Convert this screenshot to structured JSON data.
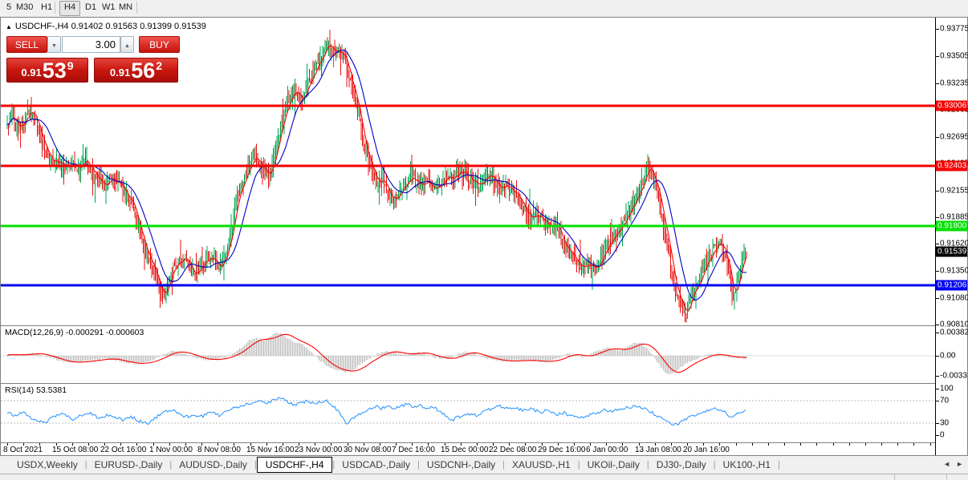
{
  "toolbar": {
    "timeframes": [
      {
        "label": "5",
        "active": false
      },
      {
        "label": "M30",
        "active": false
      },
      {
        "label": "H1",
        "active": false
      },
      {
        "label": "H4",
        "active": true
      },
      {
        "label": "D1",
        "active": false
      },
      {
        "label": "W1",
        "active": false
      },
      {
        "label": "MN",
        "active": false
      }
    ]
  },
  "chart": {
    "title_full": "USDCHF-,H4 0.91402 0.91563 0.91399 0.91539",
    "symbol": "USDCHF-",
    "timeframe": "H4"
  },
  "trade_panel": {
    "sell_label": "SELL",
    "buy_label": "BUY",
    "volume": "3.00",
    "bid_small": "0.91",
    "bid_big": "53",
    "bid_sup": "9",
    "ask_small": "0.91",
    "ask_big": "56",
    "ask_sup": "2"
  },
  "price_axis": {
    "ticks": [
      {
        "label": "0.93775",
        "price": 0.93775
      },
      {
        "label": "0.93505",
        "price": 0.93505
      },
      {
        "label": "0.93235",
        "price": 0.93235
      },
      {
        "label": "0.92965",
        "price": 0.92965
      },
      {
        "label": "0.92695",
        "price": 0.92695
      },
      {
        "label": "0.92425",
        "price": 0.92425
      },
      {
        "label": "0.92155",
        "price": 0.92155
      },
      {
        "label": "0.91885",
        "price": 0.91885
      },
      {
        "label": "0.91620",
        "price": 0.9162
      },
      {
        "label": "0.91350",
        "price": 0.9135
      },
      {
        "label": "0.91080",
        "price": 0.9108
      },
      {
        "label": "0.90810",
        "price": 0.9081
      }
    ]
  },
  "levels": [
    {
      "price": 0.93006,
      "label": "0.93006",
      "color": "#F40000"
    },
    {
      "price": 0.92403,
      "label": "0.92403",
      "color": "#F40000"
    },
    {
      "price": 0.918,
      "label": "0.91800",
      "color": "#00E100"
    },
    {
      "price": 0.91206,
      "label": "0.91206",
      "color": "#0000F0"
    }
  ],
  "current_price": {
    "label": "0.91539",
    "price": 0.91539,
    "bg": "#000000"
  },
  "macd": {
    "label": "MACD(12,26,9) -0.000291 -0.000603",
    "axis": [
      {
        "label": "0.00382",
        "value": 0.00382
      },
      {
        "label": "0.00",
        "value": 0
      },
      {
        "label": "-0.0033",
        "value": -0.0033
      }
    ]
  },
  "rsi": {
    "label": "RSI(14) 53.5381",
    "axis": [
      {
        "label": "100",
        "value": 100
      },
      {
        "label": "70",
        "value": 70
      },
      {
        "label": "30",
        "value": 30
      },
      {
        "label": "0",
        "value": 0
      }
    ]
  },
  "tabs": {
    "items": [
      {
        "label": "USDX,Weekly",
        "active": false
      },
      {
        "label": "EURUSD-,Daily",
        "active": false
      },
      {
        "label": "AUDUSD-,Daily",
        "active": false
      },
      {
        "label": "USDCHF-,H4",
        "active": true
      },
      {
        "label": "USDCAD-,Daily",
        "active": false
      },
      {
        "label": "USDCNH-,Daily",
        "active": false
      },
      {
        "label": "XAUUSD-,H1",
        "active": false
      },
      {
        "label": "UKOil-,Daily",
        "active": false
      },
      {
        "label": "DJ30-,Daily",
        "active": false
      },
      {
        "label": "UK100-,H1",
        "active": false
      }
    ],
    "scroll_left": "◄",
    "scroll_right": "►"
  },
  "chart_data": {
    "type": "candlestick",
    "symbol": "USDCHF-",
    "timeframe": "H4",
    "ohlc_readout": {
      "open": "0.91402",
      "high": "0.91563",
      "low": "0.91399",
      "close": "0.91539"
    },
    "y_range": [
      0.9081,
      0.9382
    ],
    "colors": {
      "up": "#00A651",
      "down": "#E81212",
      "ma_fast": "#FF0000",
      "ma_slow": "#0000C8",
      "macd_hist": "#C4C4C4",
      "macd_signal": "#FF0000",
      "rsi_line": "#1E90FF",
      "rsi_levels": "#B8B8B8"
    },
    "x_labels": [
      "8 Oct 2021",
      "15 Oct 08:00",
      "22 Oct 16:00",
      "1 Nov 00:00",
      "8 Nov 08:00",
      "15 Nov 16:00",
      "23 Nov 00:00",
      "30 Nov 08:00",
      "7 Dec 16:00",
      "15 Dec 00:00",
      "22 Dec 08:00",
      "29 Dec 16:00",
      "6 Jan 00:00",
      "13 Jan 08:00",
      "20 Jan 16:00"
    ],
    "price_path_anchors": [
      [
        8,
        0.928
      ],
      [
        14,
        0.929
      ],
      [
        22,
        0.9278
      ],
      [
        30,
        0.9288
      ],
      [
        36,
        0.9296
      ],
      [
        44,
        0.9286
      ],
      [
        52,
        0.9262
      ],
      [
        60,
        0.9248
      ],
      [
        70,
        0.9244
      ],
      [
        80,
        0.924
      ],
      [
        90,
        0.9242
      ],
      [
        98,
        0.9238
      ],
      [
        106,
        0.9246
      ],
      [
        114,
        0.9234
      ],
      [
        122,
        0.9226
      ],
      [
        130,
        0.922
      ],
      [
        138,
        0.9228
      ],
      [
        146,
        0.9222
      ],
      [
        154,
        0.9212
      ],
      [
        162,
        0.9206
      ],
      [
        170,
        0.9182
      ],
      [
        178,
        0.9158
      ],
      [
        186,
        0.9145
      ],
      [
        194,
        0.9128
      ],
      [
        202,
        0.9108
      ],
      [
        208,
        0.9122
      ],
      [
        214,
        0.9138
      ],
      [
        222,
        0.9146
      ],
      [
        230,
        0.9148
      ],
      [
        238,
        0.9132
      ],
      [
        246,
        0.9134
      ],
      [
        254,
        0.9146
      ],
      [
        262,
        0.915
      ],
      [
        270,
        0.9139
      ],
      [
        278,
        0.9146
      ],
      [
        286,
        0.9172
      ],
      [
        294,
        0.921
      ],
      [
        302,
        0.9224
      ],
      [
        310,
        0.9242
      ],
      [
        318,
        0.925
      ],
      [
        326,
        0.9236
      ],
      [
        334,
        0.923
      ],
      [
        342,
        0.9258
      ],
      [
        350,
        0.9285
      ],
      [
        358,
        0.9306
      ],
      [
        366,
        0.9316
      ],
      [
        374,
        0.9306
      ],
      [
        382,
        0.9322
      ],
      [
        390,
        0.9334
      ],
      [
        398,
        0.9348
      ],
      [
        406,
        0.9363
      ],
      [
        412,
        0.936
      ],
      [
        418,
        0.9352
      ],
      [
        424,
        0.9356
      ],
      [
        430,
        0.9346
      ],
      [
        436,
        0.9322
      ],
      [
        444,
        0.9298
      ],
      [
        452,
        0.9262
      ],
      [
        460,
        0.924
      ],
      [
        468,
        0.9222
      ],
      [
        476,
        0.9226
      ],
      [
        484,
        0.9212
      ],
      [
        492,
        0.9205
      ],
      [
        500,
        0.9218
      ],
      [
        508,
        0.9228
      ],
      [
        516,
        0.9226
      ],
      [
        524,
        0.9218
      ],
      [
        532,
        0.9224
      ],
      [
        540,
        0.9216
      ],
      [
        548,
        0.9224
      ],
      [
        556,
        0.923
      ],
      [
        564,
        0.9228
      ],
      [
        572,
        0.9236
      ],
      [
        580,
        0.9232
      ],
      [
        588,
        0.9224
      ],
      [
        596,
        0.9223
      ],
      [
        604,
        0.923
      ],
      [
        612,
        0.9229
      ],
      [
        620,
        0.9218
      ],
      [
        628,
        0.9222
      ],
      [
        636,
        0.9214
      ],
      [
        644,
        0.9208
      ],
      [
        652,
        0.9196
      ],
      [
        660,
        0.9188
      ],
      [
        668,
        0.9193
      ],
      [
        676,
        0.9182
      ],
      [
        684,
        0.9178
      ],
      [
        692,
        0.9183
      ],
      [
        700,
        0.9162
      ],
      [
        708,
        0.9152
      ],
      [
        716,
        0.9143
      ],
      [
        724,
        0.9136
      ],
      [
        732,
        0.9141
      ],
      [
        740,
        0.9138
      ],
      [
        748,
        0.9149
      ],
      [
        756,
        0.9161
      ],
      [
        764,
        0.9171
      ],
      [
        772,
        0.9179
      ],
      [
        780,
        0.9192
      ],
      [
        788,
        0.9203
      ],
      [
        796,
        0.9216
      ],
      [
        802,
        0.9232
      ],
      [
        807,
        0.9241
      ],
      [
        812,
        0.923
      ],
      [
        818,
        0.9214
      ],
      [
        824,
        0.9186
      ],
      [
        830,
        0.9164
      ],
      [
        836,
        0.9131
      ],
      [
        842,
        0.9111
      ],
      [
        848,
        0.9099
      ],
      [
        854,
        0.9091
      ],
      [
        860,
        0.9113
      ],
      [
        866,
        0.9122
      ],
      [
        872,
        0.9129
      ],
      [
        878,
        0.9143
      ],
      [
        884,
        0.9151
      ],
      [
        890,
        0.9159
      ],
      [
        896,
        0.9163
      ],
      [
        902,
        0.9154
      ],
      [
        907,
        0.9135
      ],
      [
        912,
        0.9107
      ],
      [
        917,
        0.9124
      ],
      [
        922,
        0.9146
      ],
      [
        928,
        0.9154
      ]
    ],
    "macd_main_anchors": [
      [
        8,
        0.0001
      ],
      [
        25,
        0.0002
      ],
      [
        40,
        0.0004
      ],
      [
        55,
        0.0
      ],
      [
        70,
        -0.0008
      ],
      [
        85,
        -0.0011
      ],
      [
        100,
        -0.001
      ],
      [
        115,
        -0.0007
      ],
      [
        130,
        -0.0004
      ],
      [
        140,
        -0.0006
      ],
      [
        155,
        -0.0011
      ],
      [
        170,
        -0.0013
      ],
      [
        185,
        -0.001
      ],
      [
        195,
        -0.0003
      ],
      [
        205,
        0.0004
      ],
      [
        215,
        0.0008
      ],
      [
        228,
        0.0004
      ],
      [
        240,
        -0.0002
      ],
      [
        255,
        -0.0007
      ],
      [
        268,
        -0.0006
      ],
      [
        280,
        -0.0002
      ],
      [
        290,
        0.0004
      ],
      [
        300,
        0.0014
      ],
      [
        310,
        0.0026
      ],
      [
        318,
        0.003
      ],
      [
        326,
        0.0026
      ],
      [
        334,
        0.003
      ],
      [
        342,
        0.0038
      ],
      [
        350,
        0.0036
      ],
      [
        358,
        0.0028
      ],
      [
        366,
        0.0022
      ],
      [
        374,
        0.002
      ],
      [
        382,
        0.0012
      ],
      [
        390,
        0.0002
      ],
      [
        398,
        -0.0008
      ],
      [
        408,
        -0.0018
      ],
      [
        418,
        -0.0024
      ],
      [
        430,
        -0.0027
      ],
      [
        440,
        -0.0022
      ],
      [
        450,
        -0.0012
      ],
      [
        460,
        -0.0004
      ],
      [
        470,
        0.0004
      ],
      [
        480,
        0.0009
      ],
      [
        490,
        0.0005
      ],
      [
        500,
        0.0002
      ],
      [
        510,
        0.0003
      ],
      [
        520,
        0.0006
      ],
      [
        530,
        0.0002
      ],
      [
        540,
        -0.0002
      ],
      [
        550,
        -0.0005
      ],
      [
        560,
        -0.0004
      ],
      [
        570,
        0.0004
      ],
      [
        580,
        0.0007
      ],
      [
        590,
        0.0003
      ],
      [
        600,
        -0.0002
      ],
      [
        612,
        -0.0007
      ],
      [
        625,
        -0.0009
      ],
      [
        640,
        -0.0008
      ],
      [
        655,
        -0.0007
      ],
      [
        670,
        -0.0009
      ],
      [
        685,
        -0.0008
      ],
      [
        695,
        -0.0004
      ],
      [
        705,
        0.0004
      ],
      [
        715,
        0.0002
      ],
      [
        725,
        -0.0003
      ],
      [
        735,
        0.0004
      ],
      [
        745,
        0.0009
      ],
      [
        755,
        0.0013
      ],
      [
        765,
        0.0011
      ],
      [
        772,
        0.0008
      ],
      [
        780,
        0.0014
      ],
      [
        790,
        0.0022
      ],
      [
        798,
        0.002
      ],
      [
        806,
        0.0012
      ],
      [
        814,
        -0.0002
      ],
      [
        822,
        -0.0018
      ],
      [
        830,
        -0.0031
      ],
      [
        838,
        -0.0028
      ],
      [
        848,
        -0.0018
      ],
      [
        858,
        -0.001
      ],
      [
        868,
        -0.0004
      ],
      [
        878,
        0.0002
      ],
      [
        888,
        0.0003
      ],
      [
        898,
        0.0
      ],
      [
        908,
        -0.0002
      ],
      [
        918,
        -0.0003
      ],
      [
        928,
        -0.0003
      ]
    ],
    "rsi_anchors": [
      [
        8,
        48
      ],
      [
        18,
        44
      ],
      [
        28,
        50
      ],
      [
        40,
        36
      ],
      [
        55,
        30
      ],
      [
        65,
        42
      ],
      [
        78,
        46
      ],
      [
        90,
        36
      ],
      [
        100,
        44
      ],
      [
        112,
        48
      ],
      [
        122,
        38
      ],
      [
        132,
        44
      ],
      [
        142,
        40
      ],
      [
        152,
        36
      ],
      [
        162,
        42
      ],
      [
        172,
        34
      ],
      [
        185,
        30
      ],
      [
        195,
        42
      ],
      [
        205,
        50
      ],
      [
        215,
        54
      ],
      [
        228,
        40
      ],
      [
        240,
        44
      ],
      [
        252,
        42
      ],
      [
        262,
        50
      ],
      [
        272,
        44
      ],
      [
        282,
        52
      ],
      [
        292,
        58
      ],
      [
        302,
        62
      ],
      [
        312,
        66
      ],
      [
        322,
        70
      ],
      [
        330,
        64
      ],
      [
        340,
        72
      ],
      [
        350,
        75
      ],
      [
        358,
        68
      ],
      [
        366,
        62
      ],
      [
        374,
        66
      ],
      [
        382,
        70
      ],
      [
        390,
        64
      ],
      [
        398,
        68
      ],
      [
        406,
        72
      ],
      [
        414,
        60
      ],
      [
        422,
        50
      ],
      [
        430,
        28
      ],
      [
        440,
        40
      ],
      [
        450,
        48
      ],
      [
        458,
        54
      ],
      [
        466,
        60
      ],
      [
        474,
        56
      ],
      [
        482,
        62
      ],
      [
        490,
        55
      ],
      [
        498,
        60
      ],
      [
        506,
        64
      ],
      [
        514,
        58
      ],
      [
        522,
        62
      ],
      [
        530,
        55
      ],
      [
        538,
        60
      ],
      [
        546,
        52
      ],
      [
        554,
        44
      ],
      [
        562,
        35
      ],
      [
        572,
        42
      ],
      [
        582,
        46
      ],
      [
        592,
        44
      ],
      [
        602,
        50
      ],
      [
        612,
        56
      ],
      [
        622,
        60
      ],
      [
        632,
        55
      ],
      [
        642,
        58
      ],
      [
        652,
        52
      ],
      [
        662,
        56
      ],
      [
        672,
        48
      ],
      [
        682,
        54
      ],
      [
        692,
        45
      ],
      [
        702,
        48
      ],
      [
        712,
        42
      ],
      [
        722,
        38
      ],
      [
        732,
        44
      ],
      [
        742,
        48
      ],
      [
        752,
        54
      ],
      [
        762,
        50
      ],
      [
        772,
        56
      ],
      [
        782,
        58
      ],
      [
        792,
        60
      ],
      [
        802,
        56
      ],
      [
        812,
        48
      ],
      [
        822,
        40
      ],
      [
        832,
        30
      ],
      [
        842,
        27
      ],
      [
        852,
        36
      ],
      [
        862,
        44
      ],
      [
        872,
        48
      ],
      [
        882,
        54
      ],
      [
        892,
        56
      ],
      [
        902,
        50
      ],
      [
        910,
        40
      ],
      [
        916,
        46
      ],
      [
        922,
        50
      ],
      [
        928,
        53.5
      ]
    ]
  }
}
